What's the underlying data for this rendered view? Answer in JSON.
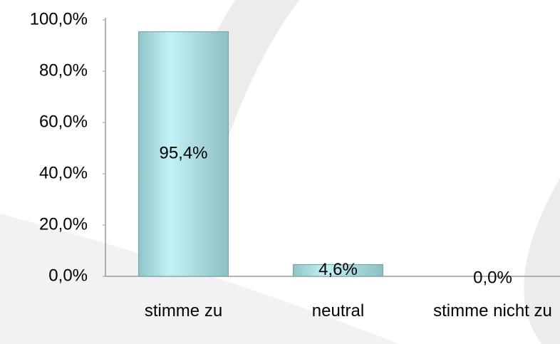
{
  "chart_data": {
    "type": "bar",
    "categories": [
      "stimme zu",
      "neutral",
      "stimme nicht zu"
    ],
    "values": [
      95.4,
      4.6,
      0.0
    ],
    "value_labels": [
      "95,4%",
      "4,6%",
      "0,0%"
    ],
    "color": "#a8dfe3",
    "ylim": [
      0,
      100
    ],
    "yticks": [
      {
        "value": 0,
        "label": "0,0%"
      },
      {
        "value": 20,
        "label": "20,0%"
      },
      {
        "value": 40,
        "label": "40,0%"
      },
      {
        "value": 60,
        "label": "60,0%"
      },
      {
        "value": 80,
        "label": "80,0%"
      },
      {
        "value": 100,
        "label": "100,0%"
      }
    ],
    "grid": false
  }
}
